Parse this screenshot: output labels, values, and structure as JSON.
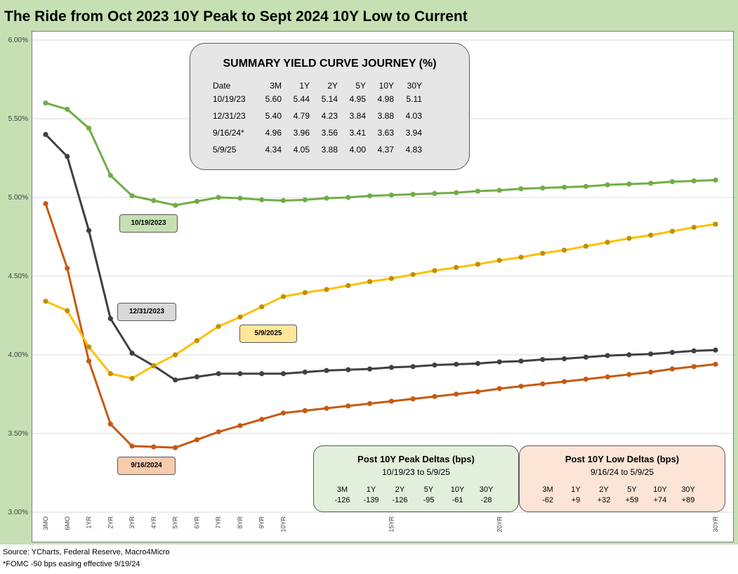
{
  "title": "The Ride from Oct 2023 10Y Peak to Sept 2024 10Y Low to Current",
  "chart_data": {
    "type": "line",
    "y_ticks": [
      "6.00%",
      "5.50%",
      "5.00%",
      "4.50%",
      "4.00%",
      "3.50%",
      "3.00%"
    ],
    "ylim": [
      3.0,
      6.0
    ],
    "x_ticks": [
      "3MO",
      "6MO",
      "1YR",
      "2YR",
      "3YR",
      "4YR",
      "5YR",
      "6YR",
      "7YR",
      "8YR",
      "9YR",
      "10YR",
      "15YR",
      "20YR",
      "30YR"
    ],
    "x": [
      0.25,
      0.5,
      1,
      2,
      3,
      4,
      5,
      6,
      7,
      8,
      9,
      10,
      11,
      12,
      13,
      14,
      15,
      16,
      17,
      18,
      19,
      20,
      21,
      22,
      23,
      24,
      25,
      26,
      27,
      28,
      29,
      30
    ],
    "grid": true,
    "series": [
      {
        "name": "10/19/2023",
        "color": "#70ad47",
        "label_fill": "#c6e0b4",
        "values": [
          5.6,
          5.56,
          5.44,
          5.14,
          5.01,
          4.98,
          4.95,
          4.975,
          5.0,
          4.995,
          4.985,
          4.98,
          4.985,
          4.995,
          5.0,
          5.01,
          5.015,
          5.02,
          5.025,
          5.03,
          5.04,
          5.045,
          5.055,
          5.06,
          5.065,
          5.07,
          5.08,
          5.085,
          5.09,
          5.1,
          5.105,
          5.11
        ]
      },
      {
        "name": "12/31/2023",
        "color": "#404040",
        "label_fill": "#d9d9d9",
        "values": [
          5.4,
          5.26,
          4.79,
          4.23,
          4.01,
          3.93,
          3.84,
          3.86,
          3.88,
          3.88,
          3.88,
          3.88,
          3.89,
          3.9,
          3.905,
          3.91,
          3.92,
          3.925,
          3.935,
          3.94,
          3.945,
          3.955,
          3.96,
          3.97,
          3.975,
          3.985,
          3.995,
          4.0,
          4.005,
          4.015,
          4.025,
          4.03
        ]
      },
      {
        "name": "9/16/2024",
        "color": "#c55a11",
        "label_fill": "#f8cbad",
        "values": [
          4.96,
          4.55,
          3.96,
          3.56,
          3.42,
          3.415,
          3.41,
          3.46,
          3.51,
          3.55,
          3.59,
          3.63,
          3.645,
          3.66,
          3.675,
          3.69,
          3.705,
          3.72,
          3.735,
          3.75,
          3.765,
          3.785,
          3.8,
          3.815,
          3.83,
          3.845,
          3.86,
          3.875,
          3.89,
          3.91,
          3.925,
          3.94
        ]
      },
      {
        "name": "5/9/2025",
        "color": "#ffc000",
        "point_color": "#bf9000",
        "label_fill": "#ffe699",
        "values": [
          4.34,
          4.28,
          4.05,
          3.88,
          3.85,
          3.93,
          4.0,
          4.09,
          4.18,
          4.24,
          4.305,
          4.37,
          4.395,
          4.415,
          4.44,
          4.465,
          4.485,
          4.51,
          4.535,
          4.555,
          4.575,
          4.6,
          4.62,
          4.645,
          4.665,
          4.69,
          4.715,
          4.74,
          4.76,
          4.785,
          4.81,
          4.83
        ]
      }
    ]
  },
  "summary": {
    "title": "SUMMARY YIELD CURVE JOURNEY (%)",
    "headers": [
      "Date",
      "3M",
      "1Y",
      "2Y",
      "5Y",
      "10Y",
      "30Y"
    ],
    "rows": [
      [
        "10/19/23",
        "5.60",
        "5.44",
        "5.14",
        "4.95",
        "4.98",
        "5.11"
      ],
      [
        "12/31/23",
        "5.40",
        "4.79",
        "4.23",
        "3.84",
        "3.88",
        "4.03"
      ],
      [
        "9/16/24*",
        "4.96",
        "3.96",
        "3.56",
        "3.41",
        "3.63",
        "3.94"
      ],
      [
        "5/9/25",
        "4.34",
        "4.05",
        "3.88",
        "4.00",
        "4.37",
        "4.83"
      ]
    ]
  },
  "peak_deltas": {
    "title": "Post 10Y Peak Deltas (bps)",
    "subtitle": "10/19/23 to 5/9/25",
    "headers": [
      "3M",
      "1Y",
      "2Y",
      "5Y",
      "10Y",
      "30Y"
    ],
    "values": [
      "-126",
      "-139",
      "-126",
      "-95",
      "-61",
      "-28"
    ]
  },
  "low_deltas": {
    "title": "Post 10Y Low Deltas (bps)",
    "subtitle": "9/16/24 to 5/9/25",
    "headers": [
      "3M",
      "1Y",
      "2Y",
      "5Y",
      "10Y",
      "30Y"
    ],
    "values": [
      "-62",
      "+9",
      "+32",
      "+59",
      "+74",
      "+89"
    ]
  },
  "source": "Source: YCharts, Federal Reserve, Macro4Micro",
  "footnote": "*FOMC -50 bps easing effective  9/19/24"
}
